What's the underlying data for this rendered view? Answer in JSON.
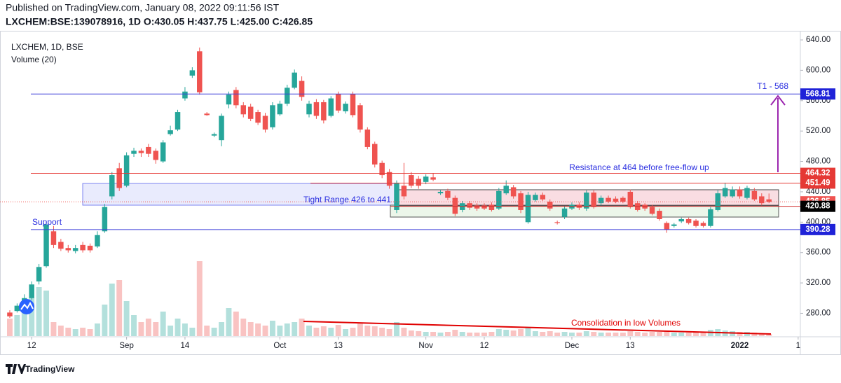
{
  "header": {
    "published": "Published on TradingView.com, January 08, 2022 09:11:56 IST",
    "symbol_line": "LXCHEM:BSE:139078916, 1D O:430.05 H:437.75 L:425.00 C:426.85"
  },
  "footer": {
    "brand": "TradingView"
  },
  "chart_data": {
    "type": "candlestick",
    "up_color": "#26a69a",
    "down_color": "#ef5350",
    "series": [
      {
        "name": "LXCHEM, 1D, BSE",
        "open": [
          281,
          283,
          290,
          300,
          322,
          342,
          388,
          374,
          366,
          362,
          370,
          369,
          368,
          388,
          434,
          471,
          448,
          490,
          494,
          499,
          494,
          480,
          516,
          522,
          563,
          593,
          625,
          543,
          514,
          508,
          555,
          574,
          554,
          552,
          545,
          540,
          525,
          542,
          556,
          577,
          586,
          542,
          558,
          558,
          540,
          569,
          546,
          569,
          554,
          522,
          503,
          478,
          466,
          416,
          448,
          462,
          457,
          453,
          459,
          438,
          441,
          432,
          416,
          425,
          422,
          422,
          423,
          418,
          438,
          446,
          438,
          400,
          429,
          436,
          427,
          400,
          407,
          418,
          423,
          418,
          439,
          425,
          432,
          431,
          432,
          440,
          425,
          423,
          420,
          415,
          399,
          395,
          401,
          404,
          402,
          399,
          395,
          416,
          434,
          434,
          443,
          432,
          441,
          434,
          430.05
        ],
        "high": [
          284,
          293,
          305,
          322,
          345,
          400,
          395,
          378,
          370,
          370,
          374,
          372,
          388,
          424,
          466,
          478,
          492,
          498,
          497,
          503,
          497,
          508,
          527,
          548,
          578,
          604,
          630,
          545,
          518,
          543,
          572,
          578,
          558,
          556,
          548,
          544,
          558,
          560,
          581,
          601,
          592,
          560,
          562,
          561,
          566,
          572,
          559,
          572,
          557,
          525,
          506,
          481,
          470,
          455,
          478,
          466,
          461,
          463,
          464,
          442,
          444,
          435,
          428,
          428,
          425,
          425,
          426,
          445,
          455,
          449,
          441,
          440,
          439,
          439,
          430,
          402,
          421,
          426,
          426,
          442,
          442,
          435,
          435,
          434,
          434,
          443,
          428,
          425,
          423,
          418,
          401,
          399,
          406,
          406,
          404,
          401,
          420,
          442,
          452,
          447,
          447,
          448,
          445,
          438,
          437.75
        ],
        "low": [
          274,
          281,
          287,
          298,
          318,
          340,
          366,
          362,
          360,
          359,
          360,
          360,
          366,
          386,
          430,
          441,
          446,
          486,
          486,
          486,
          477,
          478,
          514,
          520,
          560,
          590,
          568,
          540,
          512,
          500,
          550,
          550,
          538,
          533,
          528,
          518,
          522,
          540,
          553,
          575,
          560,
          538,
          536,
          530,
          538,
          544,
          543,
          538,
          518,
          496,
          472,
          458,
          444,
          412,
          430,
          445,
          444,
          450,
          454,
          436,
          429,
          408,
          413,
          416,
          415,
          416,
          414,
          416,
          436,
          431,
          412,
          398,
          427,
          428,
          415,
          397,
          404,
          416,
          416,
          415,
          418,
          422,
          425,
          425,
          425,
          418,
          414,
          415,
          409,
          402,
          386,
          393,
          399,
          397,
          393,
          393,
          393,
          414,
          432,
          432,
          431,
          430,
          428,
          422,
          425
        ],
        "close": [
          276,
          290,
          300,
          318,
          341,
          397,
          370,
          365,
          363,
          366,
          363,
          363,
          383,
          420,
          462,
          445,
          488,
          494,
          491,
          490,
          482,
          505,
          521,
          545,
          572,
          600,
          571,
          541,
          516,
          540,
          568,
          554,
          542,
          536,
          531,
          522,
          554,
          556,
          577,
          597,
          565,
          556,
          540,
          534,
          563,
          547,
          556,
          541,
          522,
          499,
          476,
          462,
          448,
          452,
          434,
          448,
          448,
          460,
          456,
          440,
          432,
          411,
          425,
          419,
          418,
          418,
          416,
          441,
          448,
          434,
          416,
          436,
          436,
          430,
          418,
          399,
          418,
          423,
          419,
          439,
          420,
          432,
          427,
          427,
          427,
          420,
          416,
          418,
          411,
          404,
          390,
          397,
          404,
          399,
          395,
          395,
          417,
          438,
          445,
          443,
          434,
          445,
          430,
          425,
          426.85
        ]
      },
      {
        "name": "Volume (20)",
        "values": [
          25,
          30,
          40,
          55,
          70,
          65,
          20,
          15,
          12,
          10,
          12,
          10,
          18,
          45,
          75,
          80,
          50,
          30,
          20,
          25,
          20,
          35,
          15,
          25,
          18,
          12,
          107,
          15,
          12,
          20,
          40,
          35,
          25,
          20,
          18,
          15,
          22,
          15,
          18,
          20,
          25,
          15,
          12,
          14,
          12,
          16,
          10,
          12,
          18,
          15,
          14,
          12,
          10,
          20,
          12,
          8,
          7,
          6,
          6,
          5,
          6,
          9,
          6,
          5,
          5,
          5,
          6,
          10,
          9,
          8,
          10,
          12,
          7,
          6,
          7,
          5,
          6,
          5,
          5,
          7,
          6,
          5,
          5,
          5,
          5,
          7,
          6,
          5,
          6,
          6,
          8,
          5,
          5,
          5,
          5,
          5,
          9,
          10,
          8,
          7,
          6,
          6,
          5,
          4,
          3
        ]
      }
    ],
    "volume_ylim": [
      0,
      110
    ],
    "xlim": [
      -1.34,
      108.3
    ],
    "xticks": [
      {
        "value": 3,
        "label": "12"
      },
      {
        "value": 16,
        "label": "Sep"
      },
      {
        "value": 24,
        "label": "14"
      },
      {
        "value": 37,
        "label": "Oct"
      },
      {
        "value": 45,
        "label": "13"
      },
      {
        "value": 57,
        "label": "Nov"
      },
      {
        "value": 65,
        "label": "12"
      },
      {
        "value": 77,
        "label": "Dec"
      },
      {
        "value": 85,
        "label": "13"
      },
      {
        "value": 100,
        "label": "2022"
      },
      {
        "value": 108,
        "label": "1"
      }
    ],
    "ylim": [
      250,
      652
    ],
    "yticks": [
      {
        "value": 280,
        "label": "280.00"
      },
      {
        "value": 320,
        "label": "320.00"
      },
      {
        "value": 360,
        "label": "360.00"
      },
      {
        "value": 400,
        "label": "400.00"
      },
      {
        "value": 440,
        "label": "440.00"
      },
      {
        "value": 480,
        "label": "480.00"
      },
      {
        "value": 520,
        "label": "520.00"
      },
      {
        "value": 560,
        "label": "560.00"
      },
      {
        "value": 600,
        "label": "600.00"
      },
      {
        "value": 640,
        "label": "640.00"
      }
    ],
    "levels": [
      {
        "value": 568.81,
        "color": "#1f22d8",
        "line_color": "#3b3fd9"
      },
      {
        "value": 464.32,
        "color": "#e53935",
        "line_color": "#e53935"
      },
      {
        "value": 451.49,
        "color": "#e53935",
        "line_color": "#e53935"
      },
      {
        "value": 426.85,
        "color": "#ef5350",
        "line_color": "#ef5350"
      },
      {
        "value": 420.88,
        "color": "#000000",
        "line_color": "#d32f2f"
      },
      {
        "value": 390.28,
        "color": "#1f22d8",
        "line_color": "#3b3fd9"
      }
    ],
    "annotations": [
      "T1 - 568",
      "Resistance at 464 before free-flow up",
      "Tight Range 426 to 441",
      "Support",
      "Consolidation in low Volumes"
    ]
  }
}
